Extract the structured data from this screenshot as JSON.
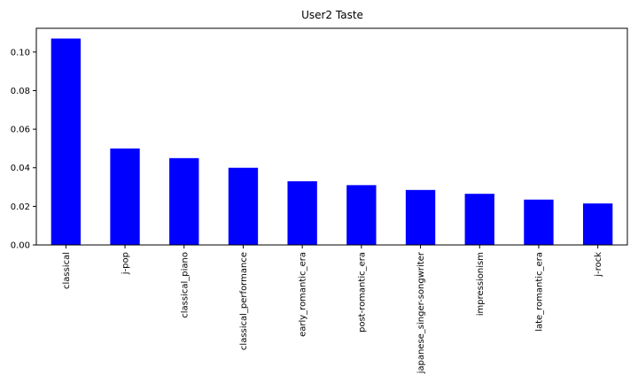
{
  "chart_data": {
    "type": "bar",
    "title": "User2 Taste",
    "xlabel": "",
    "ylabel": "",
    "categories": [
      "classical",
      "j-pop",
      "classical_piano",
      "classical_performance",
      "early_romantic_era",
      "post-romantic_era",
      "japanese_singer-songwriter",
      "impressionism",
      "late_romantic_era",
      "j-rock"
    ],
    "values": [
      0.107,
      0.05,
      0.045,
      0.04,
      0.033,
      0.031,
      0.0285,
      0.0265,
      0.0235,
      0.0215
    ],
    "ylim": [
      0,
      0.1123
    ],
    "yticks": [
      "0.00",
      "0.02",
      "0.04",
      "0.06",
      "0.08",
      "0.10"
    ],
    "bar_color": "#0000ff",
    "grid": false,
    "legend": false
  }
}
